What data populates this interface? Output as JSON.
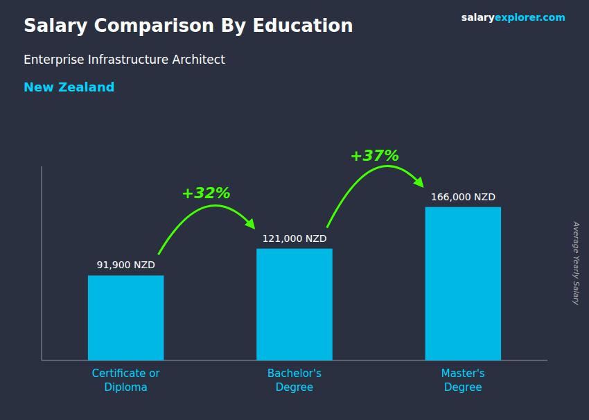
{
  "chart_data": {
    "type": "bar",
    "title": "Salary Comparison By Education",
    "subtitle": "Enterprise Infrastructure Architect",
    "ylabel": "Average Yearly Salary",
    "annotations": [
      "New Zealand",
      "+32%",
      "+37%",
      "salary",
      "explorer",
      ".com"
    ],
    "categories": [
      "Certificate or\nDiploma",
      "Bachelor's\nDegree",
      "Master's\nDegree"
    ],
    "values": [
      91900,
      121000,
      166000
    ],
    "value_labels": [
      "91,900 NZD",
      "121,000 NZD",
      "166,000 NZD"
    ],
    "data_labels": true,
    "color": "#00b8e6",
    "ylim": [
      0,
      210000
    ],
    "tick_labels": "x",
    "grid": false
  }
}
